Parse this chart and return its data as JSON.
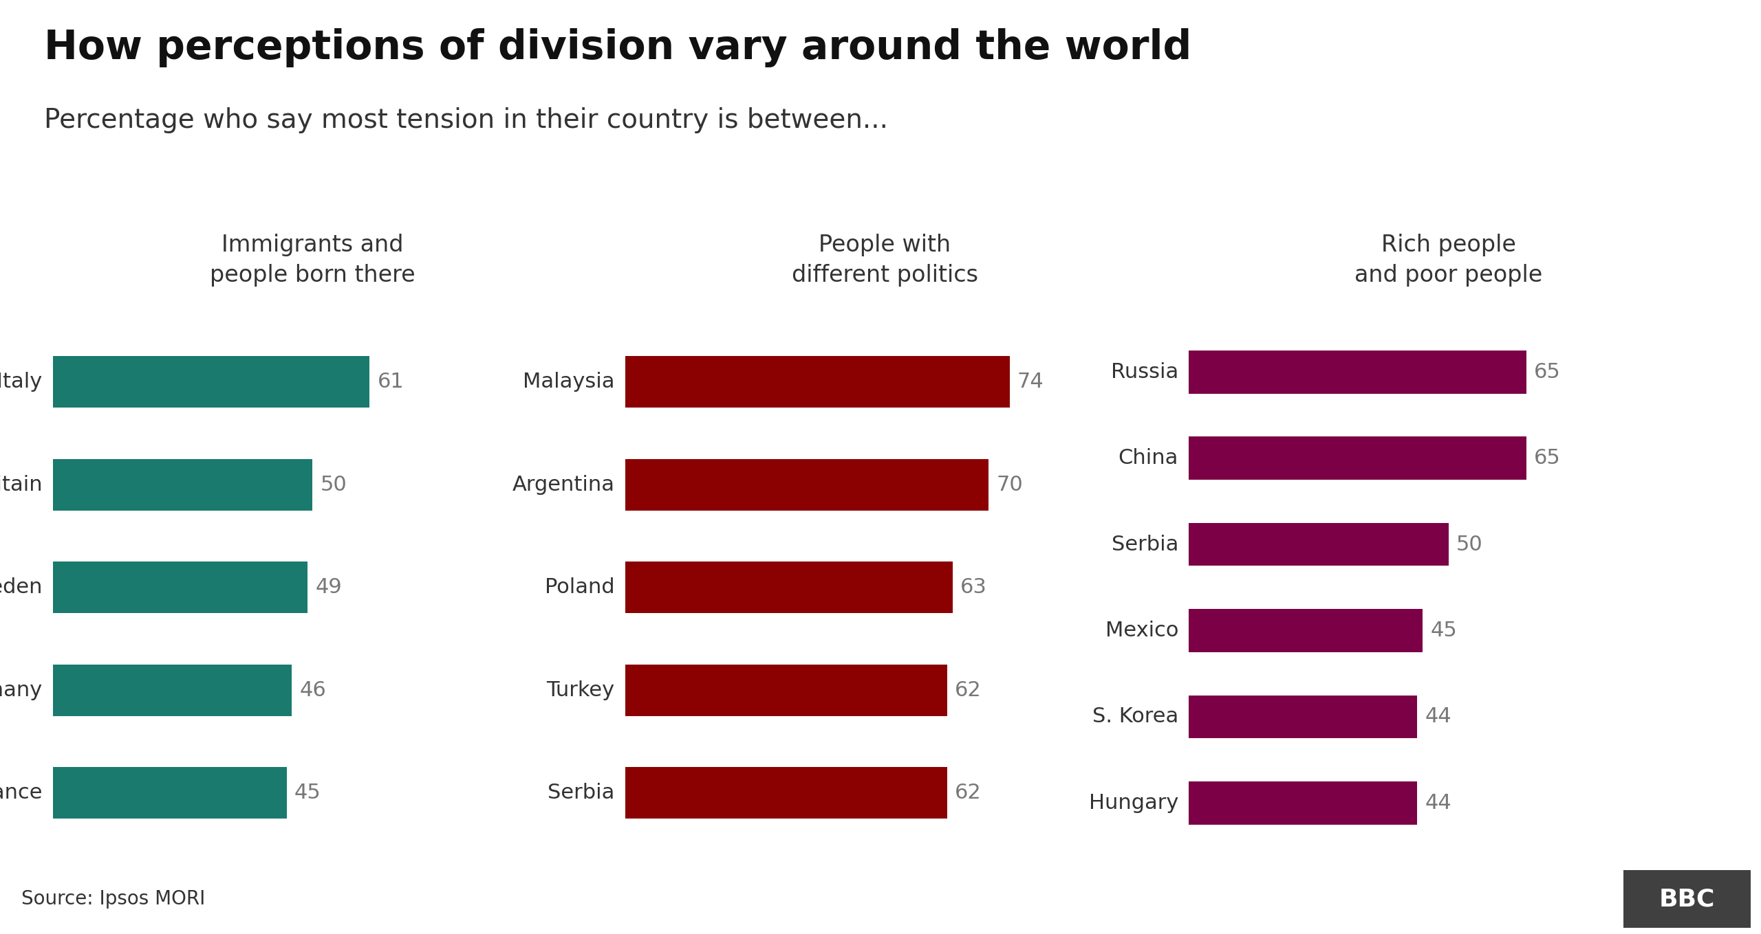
{
  "title": "How perceptions of division vary around the world",
  "subtitle": "Percentage who say most tension in their country is between...",
  "background_color": "#ffffff",
  "footer_text": "Source: Ipsos MORI",
  "panels": [
    {
      "header": "Immigrants and\npeople born there",
      "color": "#1a7a6e",
      "countries": [
        "Italy",
        "Britain",
        "Sweden",
        "Germany",
        "France"
      ],
      "values": [
        61,
        50,
        49,
        46,
        45
      ],
      "max_val": 100
    },
    {
      "header": "People with\ndifferent politics",
      "color": "#8b0000",
      "countries": [
        "Malaysia",
        "Argentina",
        "Poland",
        "Turkey",
        "Serbia"
      ],
      "values": [
        74,
        70,
        63,
        62,
        62
      ],
      "max_val": 100
    },
    {
      "header": "Rich people\nand poor people",
      "color": "#7b0045",
      "countries": [
        "Russia",
        "China",
        "Serbia",
        "Mexico",
        "S. Korea",
        "Hungary"
      ],
      "values": [
        65,
        65,
        50,
        45,
        44,
        44
      ],
      "max_val": 100
    }
  ],
  "title_fontsize": 42,
  "subtitle_fontsize": 28,
  "header_fontsize": 24,
  "label_fontsize": 22,
  "value_fontsize": 22,
  "footer_fontsize": 20,
  "bar_height": 0.5,
  "text_color": "#333333",
  "gray_color": "#777777",
  "footer_bg": "#d8d8d8",
  "bbc_bg": "#404040",
  "bbc_text": "#ffffff"
}
